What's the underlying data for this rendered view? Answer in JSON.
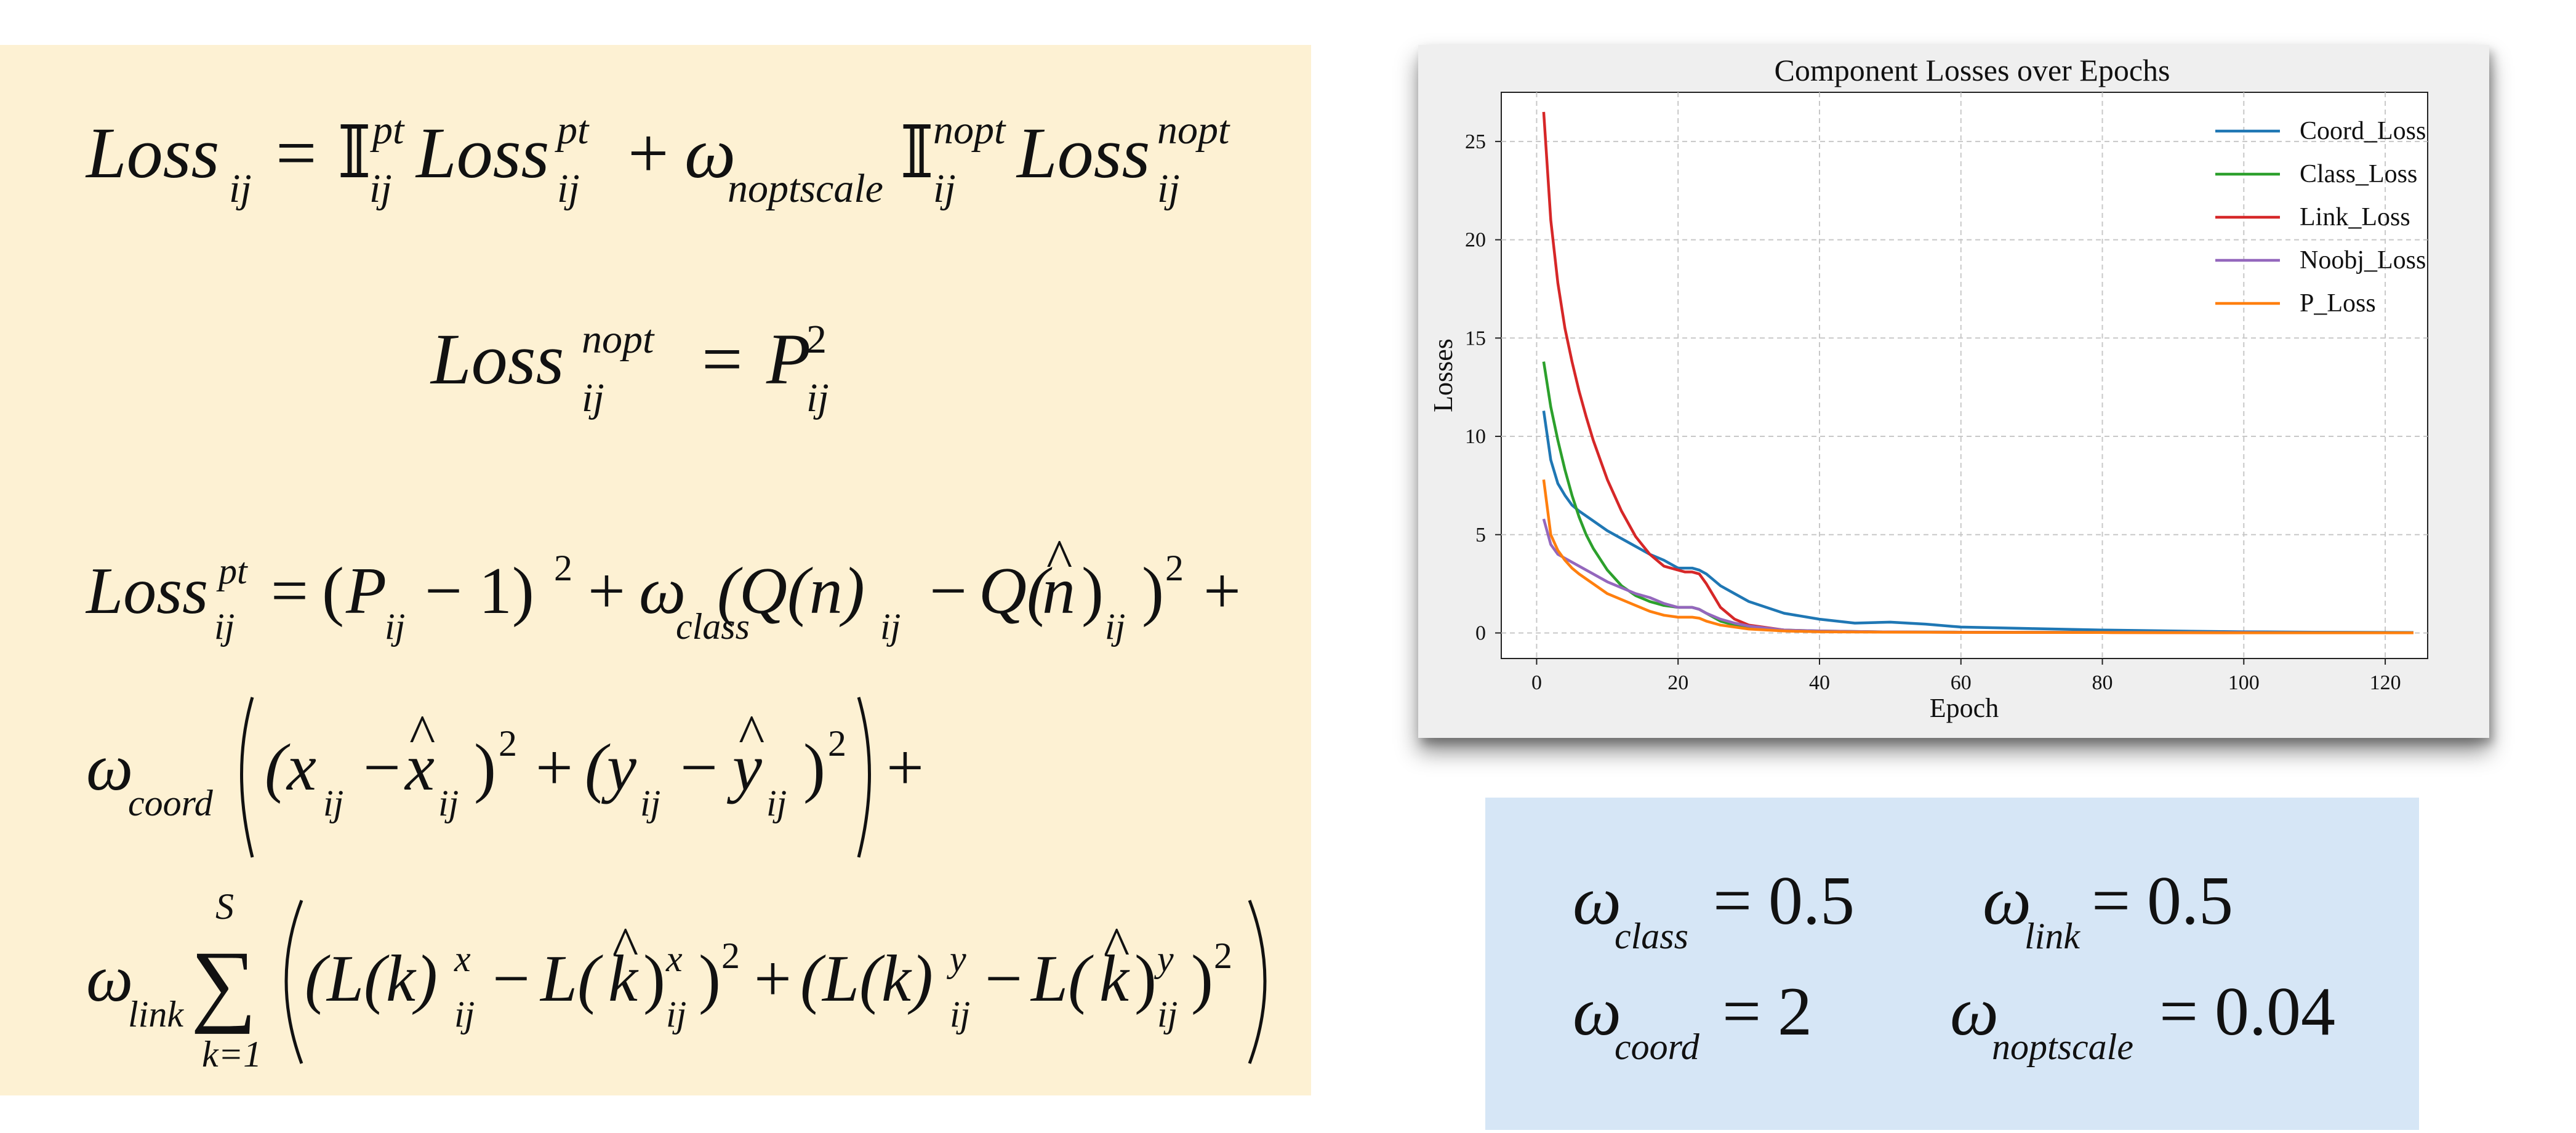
{
  "equations": {
    "eq1": {
      "lhs": "Loss",
      "lhs_sub": "ij",
      "eq": "=",
      "ind1": "𝕀",
      "ind1_sup": "pt",
      "ind1_sub": "ij",
      "term1": "Loss",
      "term1_sup": "pt",
      "term1_sub": "ij",
      "plus": "+",
      "omega": "ω",
      "omega_sub": "noptscale",
      "ind2": "𝕀",
      "ind2_sup": "nopt",
      "ind2_sub": "ij",
      "term2": "Loss",
      "term2_sup": "nopt",
      "term2_sub": "ij"
    },
    "eq2": {
      "lhs": "Loss",
      "lhs_sup": "nopt",
      "lhs_sub": "ij",
      "eq": "=",
      "rhs": "P",
      "rhs_sup": "2",
      "rhs_sub": "ij"
    },
    "eq3": {
      "lhs": "Loss",
      "lhs_sup": "pt",
      "lhs_sub": "ij",
      "line1": {
        "eq": "=",
        "open": "(",
        "p": "P",
        "p_sub": "ij",
        "minus1": "− 1)",
        "sq1": "2",
        "plus1": "+",
        "omega": "ω",
        "omega_sub": "class",
        "q1": "(Q(n)",
        "q1_sub": "ij",
        "minus": "−",
        "q2": "Q(",
        "n_hat": "n",
        "hat": "^",
        "q2_close": ")",
        "q2_sub": "ij",
        "close": ")",
        "sq2": "2",
        "plus2": "+"
      },
      "line2": {
        "omega": "ω",
        "omega_sub": "coord",
        "x": "(x",
        "x_sub": "ij",
        "minus": "−",
        "xhat": "x",
        "xhat_sub": "ij",
        "close1": ")",
        "sq1": "2",
        "plus": "+",
        "y": "(y",
        "y_sub": "ij",
        "yhat": "y",
        "yhat_sub": "ij",
        "close2": ")",
        "sq2": "2",
        "hat": "^",
        "plus_end": "+"
      },
      "line3": {
        "omega": "ω",
        "omega_sub": "link",
        "sum": "∑",
        "sum_top": "S",
        "sum_bottom": "k=1",
        "l1": "(L(k)",
        "l1_sup": "x",
        "l1_sub": "ij",
        "minus1": "−",
        "l2": "L(",
        "khat": "k",
        "l2_close": ")",
        "l2_sup": "x",
        "l2_sub": "ij",
        "close1": ")",
        "sq1": "2",
        "plus": "+",
        "l3": "(L(k)",
        "l3_sup": "y",
        "l3_sub": "ij",
        "minus2": "−",
        "l4": "L(",
        "khat2": "k",
        "l4_close": ")",
        "l4_sup": "y",
        "l4_sub": "ij",
        "close2": ")",
        "sq2": "2",
        "hat": "^"
      }
    }
  },
  "weights": {
    "w1": {
      "omega": "ω",
      "sub": "class",
      "eq": "=",
      "val": "0.5"
    },
    "w2": {
      "omega": "ω",
      "sub": "link",
      "eq": "=",
      "val": "0.5"
    },
    "w3": {
      "omega": "ω",
      "sub": "coord",
      "eq": "=",
      "val": "2"
    },
    "w4": {
      "omega": "ω",
      "sub": "noptscale",
      "eq": "=",
      "val": "0.04"
    }
  },
  "chart_data": {
    "type": "line",
    "title": "Component Losses over Epochs",
    "xlabel": "Epoch",
    "ylabel": "Losses",
    "xlim": [
      -5,
      126
    ],
    "ylim": [
      -1.3,
      27.5
    ],
    "xticks": [
      0,
      20,
      40,
      60,
      80,
      100,
      120
    ],
    "yticks": [
      0,
      5,
      10,
      15,
      20,
      25
    ],
    "grid": true,
    "legend_position": "top-right",
    "series": [
      {
        "name": "Coord_Loss",
        "color": "#1f77b4",
        "x": [
          1,
          2,
          3,
          4,
          5,
          6,
          8,
          10,
          12,
          14,
          16,
          18,
          20,
          22,
          23,
          24,
          25,
          26,
          28,
          30,
          35,
          40,
          45,
          50,
          55,
          60,
          70,
          80,
          90,
          100,
          110,
          124
        ],
        "y": [
          11.3,
          8.8,
          7.6,
          7.0,
          6.5,
          6.2,
          5.7,
          5.2,
          4.8,
          4.4,
          4.0,
          3.7,
          3.3,
          3.3,
          3.2,
          3.0,
          2.7,
          2.4,
          2.0,
          1.6,
          1.0,
          0.7,
          0.5,
          0.55,
          0.45,
          0.3,
          0.22,
          0.15,
          0.1,
          0.06,
          0.04,
          0.02
        ]
      },
      {
        "name": "Class_Loss",
        "color": "#2ca02c",
        "x": [
          1,
          2,
          3,
          4,
          5,
          6,
          7,
          8,
          10,
          12,
          14,
          16,
          18,
          20,
          22,
          23,
          24,
          26,
          28,
          30,
          35,
          40,
          50,
          60,
          80,
          100,
          124
        ],
        "y": [
          13.8,
          11.5,
          9.8,
          8.3,
          7.0,
          5.9,
          5.0,
          4.3,
          3.2,
          2.4,
          1.9,
          1.6,
          1.4,
          1.3,
          1.3,
          1.2,
          1.0,
          0.6,
          0.4,
          0.3,
          0.15,
          0.1,
          0.05,
          0.04,
          0.03,
          0.02,
          0.01
        ]
      },
      {
        "name": "Link_Loss",
        "color": "#d62728",
        "x": [
          1,
          2,
          3,
          4,
          5,
          6,
          7,
          8,
          10,
          12,
          14,
          16,
          18,
          20,
          21,
          22,
          23,
          24,
          25,
          26,
          28,
          30,
          35,
          40,
          50,
          60,
          80,
          100,
          124
        ],
        "y": [
          26.5,
          21.0,
          17.8,
          15.5,
          13.8,
          12.3,
          11.0,
          9.8,
          7.8,
          6.2,
          4.9,
          4.0,
          3.4,
          3.2,
          3.1,
          3.1,
          3.0,
          2.5,
          1.9,
          1.3,
          0.7,
          0.4,
          0.15,
          0.08,
          0.05,
          0.03,
          0.02,
          0.01,
          0.01
        ]
      },
      {
        "name": "Noobj_Loss",
        "color": "#9467bd",
        "x": [
          1,
          2,
          3,
          4,
          5,
          6,
          8,
          10,
          12,
          14,
          16,
          18,
          20,
          22,
          23,
          24,
          26,
          28,
          30,
          35,
          40,
          50,
          60,
          80,
          100,
          124
        ],
        "y": [
          5.8,
          4.5,
          4.0,
          3.8,
          3.6,
          3.4,
          3.0,
          2.6,
          2.3,
          2.0,
          1.8,
          1.5,
          1.3,
          1.3,
          1.2,
          1.0,
          0.7,
          0.5,
          0.35,
          0.15,
          0.1,
          0.05,
          0.04,
          0.03,
          0.02,
          0.01
        ]
      },
      {
        "name": "P_Loss",
        "color": "#ff7f0e",
        "x": [
          1,
          2,
          3,
          4,
          5,
          6,
          8,
          10,
          12,
          14,
          16,
          18,
          20,
          22,
          23,
          24,
          26,
          28,
          30,
          35,
          40,
          50,
          60,
          80,
          100,
          124
        ],
        "y": [
          7.8,
          5.0,
          4.2,
          3.7,
          3.3,
          3.0,
          2.5,
          2.0,
          1.7,
          1.4,
          1.1,
          0.9,
          0.8,
          0.8,
          0.75,
          0.6,
          0.4,
          0.3,
          0.2,
          0.1,
          0.06,
          0.04,
          0.03,
          0.02,
          0.01,
          0.01
        ]
      }
    ]
  }
}
